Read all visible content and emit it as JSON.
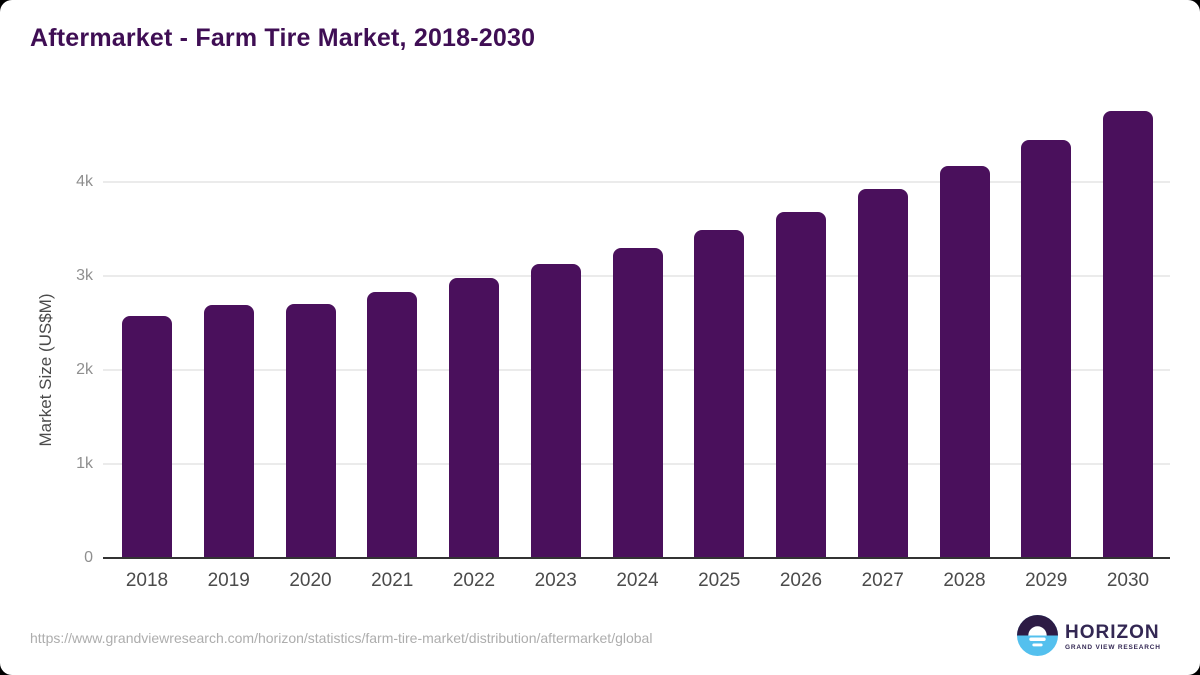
{
  "header": {
    "title": "Aftermarket - Farm Tire Market, 2018-2030",
    "title_color": "#3f0e54"
  },
  "chart_data": {
    "type": "bar",
    "title": "Aftermarket - Farm Tire Market, 2018-2030",
    "categories": [
      "2018",
      "2019",
      "2020",
      "2021",
      "2022",
      "2023",
      "2024",
      "2025",
      "2026",
      "2027",
      "2028",
      "2029",
      "2030"
    ],
    "values": [
      2570,
      2690,
      2700,
      2830,
      2980,
      3130,
      3300,
      3490,
      3680,
      3925,
      4170,
      4445,
      4755
    ],
    "xlabel": "",
    "ylabel": "Market Size (US$M)",
    "ylim": [
      0,
      5000
    ],
    "yticks": [
      {
        "value": 0,
        "label": "0"
      },
      {
        "value": 1000,
        "label": "1k"
      },
      {
        "value": 2000,
        "label": "2k"
      },
      {
        "value": 3000,
        "label": "3k"
      },
      {
        "value": 4000,
        "label": "4k"
      }
    ],
    "grid": true,
    "legend": false,
    "bar_color": "#4a105c",
    "gridline_color": "#ebebeb",
    "axis_color": "#333333",
    "ytick_label_color": "#8f8f8f",
    "xtick_label_color": "#4b4b4b"
  },
  "footer": {
    "source_url": "https://www.grandviewresearch.com/horizon/statistics/farm-tire-market/distribution/aftermarket/global",
    "logo": {
      "name": "HORIZON",
      "subtitle": "GRAND VIEW RESEARCH",
      "text_color": "#332753",
      "circle_top_color": "#2d1b45",
      "circle_bottom_color": "#54c0ee"
    }
  }
}
